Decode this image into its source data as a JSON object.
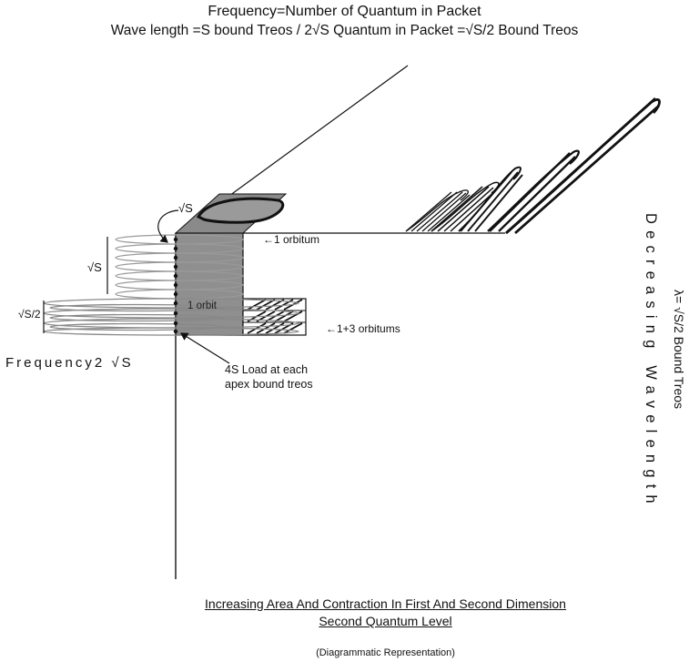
{
  "title": {
    "line1": "Frequency=Number of Quantum in Packet",
    "line2": "Wave length =S bound Treos / 2√S Quantum in Packet =√S/2 Bound Treos"
  },
  "labels": {
    "sqrt_s_top": "√S",
    "sqrt_s_side": "√S",
    "sqrt_s2_side": "√S/2",
    "one_orbitum": "←1 orbitum",
    "one_orbit_inner": "1 orbit",
    "one_plus_three_orbitums": "←1+3 orbitums",
    "frequency": "Frequency2 √S",
    "load": "4S Load at each\napex bound treos",
    "lambda": "λ= √S/2 Bound Treos",
    "decreasing_wavelength": "Decreasing Wavelength"
  },
  "caption": {
    "line1": "Increasing Area And Contraction In First And Second Dimension",
    "line2": "Second Quantum Level",
    "line3": "(Diagrammatic Representation)"
  },
  "colors": {
    "ink": "#111111",
    "shade": "#8a8a8a",
    "light_shade": "#b0b0b0",
    "grey_loops": "#9a9a9a"
  }
}
